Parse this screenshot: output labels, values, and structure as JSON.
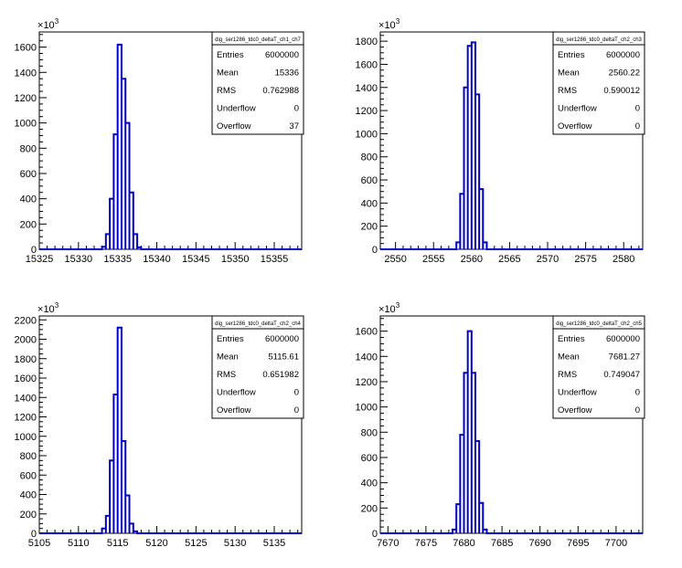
{
  "chart_data": [
    {
      "type": "bar",
      "stats_title": "dig_ser1286_tdc0_deltaT_ch1_ch7",
      "stats": {
        "Entries": "6000000",
        "Mean": "15336",
        "RMS": "0.762988",
        "Underflow": "0",
        "Overflow": "37"
      },
      "exponent_label": "10",
      "multiplier_prefix": "×",
      "xlim": [
        15325,
        15358.5
      ],
      "ylim": [
        0,
        1720
      ],
      "xticks": [
        15325,
        15330,
        15335,
        15340,
        15345,
        15350,
        15355
      ],
      "xtick_labels": [
        "15325",
        "15330",
        "15335",
        "15340",
        "15345",
        "15350",
        "15355"
      ],
      "yticks": [
        0,
        200,
        400,
        600,
        800,
        1000,
        1200,
        1400,
        1600
      ],
      "ytick_labels": [
        "0",
        "200",
        "400",
        "600",
        "800",
        "1000",
        "1200",
        "1400",
        "1600"
      ],
      "bin_width": 0.5,
      "bins": [
        {
          "x": 15333.0,
          "y": 20
        },
        {
          "x": 15333.5,
          "y": 120
        },
        {
          "x": 15334.0,
          "y": 400
        },
        {
          "x": 15334.5,
          "y": 910
        },
        {
          "x": 15335.0,
          "y": 1620
        },
        {
          "x": 15335.5,
          "y": 1350
        },
        {
          "x": 15336.0,
          "y": 1000
        },
        {
          "x": 15336.5,
          "y": 450
        },
        {
          "x": 15337.0,
          "y": 120
        },
        {
          "x": 15337.5,
          "y": 15
        }
      ]
    },
    {
      "type": "bar",
      "stats_title": "dig_ser1286_tdc0_deltaT_ch2_ch3",
      "stats": {
        "Entries": "6000000",
        "Mean": "2560.22",
        "RMS": "0.590012",
        "Underflow": "0",
        "Overflow": "0"
      },
      "exponent_label": "10",
      "multiplier_prefix": "×",
      "xlim": [
        2548,
        2582.5
      ],
      "ylim": [
        0,
        1880
      ],
      "xticks": [
        2550,
        2555,
        2560,
        2565,
        2570,
        2575,
        2580
      ],
      "xtick_labels": [
        "2550",
        "2555",
        "2560",
        "2565",
        "2570",
        "2575",
        "2580"
      ],
      "yticks": [
        0,
        200,
        400,
        600,
        800,
        1000,
        1200,
        1400,
        1600,
        1800
      ],
      "ytick_labels": [
        "0",
        "200",
        "400",
        "600",
        "800",
        "1000",
        "1200",
        "1400",
        "1600",
        "1800"
      ],
      "bin_width": 0.5,
      "bins": [
        {
          "x": 2558.0,
          "y": 60
        },
        {
          "x": 2558.5,
          "y": 480
        },
        {
          "x": 2559.0,
          "y": 1400
        },
        {
          "x": 2559.5,
          "y": 1760
        },
        {
          "x": 2560.0,
          "y": 1790
        },
        {
          "x": 2560.5,
          "y": 1340
        },
        {
          "x": 2561.0,
          "y": 520
        },
        {
          "x": 2561.5,
          "y": 60
        }
      ]
    },
    {
      "type": "bar",
      "stats_title": "dig_ser1286_tdc0_deltaT_ch2_ch4",
      "stats": {
        "Entries": "6000000",
        "Mean": "5115.61",
        "RMS": "0.651982",
        "Underflow": "0",
        "Overflow": "0"
      },
      "exponent_label": "10",
      "multiplier_prefix": "×",
      "xlim": [
        5105,
        5138.5
      ],
      "ylim": [
        0,
        2240
      ],
      "xticks": [
        5105,
        5110,
        5115,
        5120,
        5125,
        5130,
        5135
      ],
      "xtick_labels": [
        "5105",
        "5110",
        "5115",
        "5120",
        "5125",
        "5130",
        "5135"
      ],
      "yticks": [
        0,
        200,
        400,
        600,
        800,
        1000,
        1200,
        1400,
        1600,
        1800,
        2000,
        2200
      ],
      "ytick_labels": [
        "0",
        "200",
        "400",
        "600",
        "800",
        "1000",
        "1200",
        "1400",
        "1600",
        "1800",
        "2000",
        "2200"
      ],
      "bin_width": 0.5,
      "bins": [
        {
          "x": 5113.0,
          "y": 50
        },
        {
          "x": 5113.5,
          "y": 180
        },
        {
          "x": 5114.0,
          "y": 750
        },
        {
          "x": 5114.5,
          "y": 1430
        },
        {
          "x": 5115.0,
          "y": 2120
        },
        {
          "x": 5115.5,
          "y": 950
        },
        {
          "x": 5116.0,
          "y": 390
        },
        {
          "x": 5116.5,
          "y": 100
        },
        {
          "x": 5117.0,
          "y": 20
        }
      ]
    },
    {
      "type": "bar",
      "stats_title": "dig_ser1286_tdc0_deltaT_ch2_ch5",
      "stats": {
        "Entries": "6000000",
        "Mean": "7681.27",
        "RMS": "0.749047",
        "Underflow": "0",
        "Overflow": "0"
      },
      "exponent_label": "10",
      "multiplier_prefix": "×",
      "xlim": [
        7669,
        7703.5
      ],
      "ylim": [
        0,
        1720
      ],
      "xticks": [
        7670,
        7675,
        7680,
        7685,
        7690,
        7695,
        7700
      ],
      "xtick_labels": [
        "7670",
        "7675",
        "7680",
        "7685",
        "7690",
        "7695",
        "7700"
      ],
      "yticks": [
        0,
        200,
        400,
        600,
        800,
        1000,
        1200,
        1400,
        1600
      ],
      "ytick_labels": [
        "0",
        "200",
        "400",
        "600",
        "800",
        "1000",
        "1200",
        "1400",
        "1600"
      ],
      "bin_width": 0.5,
      "bins": [
        {
          "x": 7678.5,
          "y": 30
        },
        {
          "x": 7679.0,
          "y": 230
        },
        {
          "x": 7679.5,
          "y": 780
        },
        {
          "x": 7680.0,
          "y": 1270
        },
        {
          "x": 7680.5,
          "y": 1600
        },
        {
          "x": 7681.0,
          "y": 1270
        },
        {
          "x": 7681.5,
          "y": 730
        },
        {
          "x": 7682.0,
          "y": 240
        },
        {
          "x": 7682.5,
          "y": 30
        }
      ]
    }
  ],
  "style": {
    "line_color": "#0000cc",
    "axis_color": "#000000",
    "background": "#ffffff"
  }
}
